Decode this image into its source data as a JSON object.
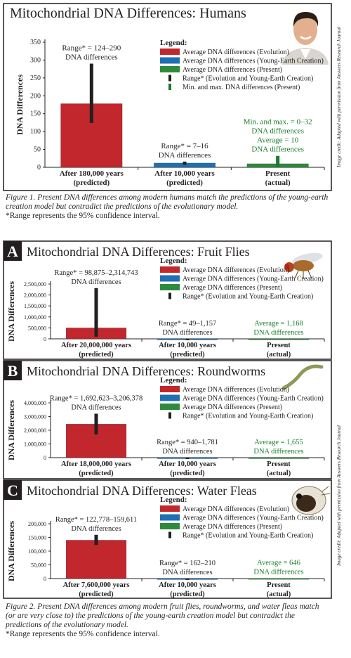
{
  "chart_data": [
    {
      "type": "bar",
      "title": "Mitochondrial DNA Differences: Humans",
      "ylabel": "DNA Differences",
      "categories": [
        "After 180,000 years\n(predicted)",
        "After 10,000 years\n(predicted)",
        "Present\n(actual)"
      ],
      "values": [
        178,
        12,
        10
      ],
      "colors": [
        "#c1272d",
        "#1f6fb5",
        "#2e8b3e"
      ],
      "err_low": [
        124,
        7,
        0
      ],
      "err_high": [
        290,
        16,
        32
      ],
      "err_colors": [
        "#231f20",
        "#231f20",
        "#1a7a2e"
      ],
      "annotations": [
        "Range* = 124–290\nDNA differences",
        "Range* = 7–16\nDNA differences",
        "Min. and max. = 0–32\nDNA differences\nAverage = 10\nDNA differences"
      ],
      "annotation_colors": [
        "#231f20",
        "#231f20",
        "#1a7a2e"
      ],
      "legend_title": "Legend:",
      "legend": [
        {
          "name": "Average DNA differences (Evolution)",
          "color": "#c1272d",
          "marker": "bar"
        },
        {
          "name": "Average DNA differences (Young-Earth Creation)",
          "color": "#1f6fb5",
          "marker": "bar"
        },
        {
          "name": "Average DNA differences (Present)",
          "color": "#2e8b3e",
          "marker": "bar"
        },
        {
          "name": "Range* (Evolution and Young-Earth Creation)",
          "color": "#231f20",
          "marker": "line"
        },
        {
          "name": "Min. and max. DNA differences (Present)",
          "color": "#1a7a2e",
          "marker": "line"
        }
      ],
      "ylim": [
        0,
        350
      ],
      "yticks": [
        0,
        50,
        100,
        150,
        200,
        250,
        300,
        350
      ]
    },
    {
      "type": "bar",
      "panel_label": "A",
      "title": "Mitochondrial DNA Differences: Fruit Flies",
      "ylabel": "DNA Differences",
      "categories": [
        "After 20,000,000 years\n(predicted)",
        "After 10,000 years\n(predicted)",
        "Present\n(actual)"
      ],
      "values": [
        500000,
        600,
        1168
      ],
      "colors": [
        "#c1272d",
        "#1f6fb5",
        "#2e8b3e"
      ],
      "err_low": [
        98875,
        49,
        null
      ],
      "err_high": [
        2314743,
        1157,
        null
      ],
      "err_colors": [
        "#231f20",
        "#231f20",
        "#231f20"
      ],
      "annotations": [
        "Range* = 98,875–2,314,743\nDNA differences",
        "Range* = 49–1,157\nDNA differences",
        "Average = 1,168\nDNA differences"
      ],
      "annotation_colors": [
        "#231f20",
        "#231f20",
        "#1a7a2e"
      ],
      "legend_title": "Legend:",
      "legend": [
        {
          "name": "Average DNA differences (Evolution)",
          "color": "#c1272d",
          "marker": "bar"
        },
        {
          "name": "Average DNA differences (Young-Earth Creation)",
          "color": "#1f6fb5",
          "marker": "bar"
        },
        {
          "name": "Average DNA differences (Present)",
          "color": "#2e8b3e",
          "marker": "bar"
        },
        {
          "name": "Range* (Evolution and Young-Earth Creation)",
          "color": "#231f20",
          "marker": "line"
        }
      ],
      "ylim": [
        0,
        2500000
      ],
      "yticks": [
        0,
        {
          "value": 500000,
          "label": "500,000"
        },
        {
          "value": 1000000,
          "label": "1,000,000"
        },
        {
          "value": 1500000,
          "label": "1,500,000"
        },
        {
          "value": 2000000,
          "label": "2,000,000"
        },
        {
          "value": 2500000,
          "label": "2,500,000"
        }
      ]
    },
    {
      "type": "bar",
      "panel_label": "B",
      "title": "Mitochondrial DNA Differences: Roundworms",
      "ylabel": "DNA Differences",
      "categories": [
        "After 18,000,000 years\n(predicted)",
        "After 10,000 years\n(predicted)",
        "Present\n(actual)"
      ],
      "values": [
        2450000,
        1300,
        1655
      ],
      "colors": [
        "#c1272d",
        "#1f6fb5",
        "#2e8b3e"
      ],
      "err_low": [
        1692623,
        940,
        null
      ],
      "err_high": [
        3206378,
        1781,
        null
      ],
      "err_colors": [
        "#231f20",
        "#231f20",
        "#231f20"
      ],
      "annotations": [
        "Range* = 1,692,623–3,206,378\nDNA differences",
        "Range* = 940–1,781\nDNA differences",
        "Average = 1,655\nDNA differences"
      ],
      "annotation_colors": [
        "#231f20",
        "#231f20",
        "#1a7a2e"
      ],
      "legend_title": "Legend:",
      "legend": [
        {
          "name": "Average DNA differences (Evolution)",
          "color": "#c1272d",
          "marker": "bar"
        },
        {
          "name": "Average DNA differences (Young-Earth Creation)",
          "color": "#1f6fb5",
          "marker": "bar"
        },
        {
          "name": "Average DNA differences (Present)",
          "color": "#2e8b3e",
          "marker": "bar"
        },
        {
          "name": "Range* (Evolution and Young-Earth Creation)",
          "color": "#231f20",
          "marker": "line"
        }
      ],
      "ylim": [
        0,
        4000000
      ],
      "yticks": [
        0,
        {
          "value": 1000000,
          "label": "1,000,000"
        },
        {
          "value": 2000000,
          "label": "2,000,000"
        },
        {
          "value": 3000000,
          "label": "3,000,000"
        },
        {
          "value": 4000000,
          "label": "4,000,000"
        }
      ]
    },
    {
      "type": "bar",
      "panel_label": "C",
      "title": "Mitochondrial DNA Differences: Water Fleas",
      "ylabel": "DNA Differences",
      "categories": [
        "After 7,600,000 years\n(predicted)",
        "After 10,000 years\n(predicted)",
        "Present\n(actual)"
      ],
      "values": [
        140000,
        186,
        646
      ],
      "colors": [
        "#c1272d",
        "#1f6fb5",
        "#2e8b3e"
      ],
      "err_low": [
        122778,
        162,
        null
      ],
      "err_high": [
        159611,
        210,
        null
      ],
      "err_colors": [
        "#231f20",
        "#231f20",
        "#231f20"
      ],
      "annotations": [
        "Range* = 122,778–159,611\nDNA differences",
        "Range* = 162–210\nDNA differences",
        "Average = 646\nDNA differences"
      ],
      "annotation_colors": [
        "#231f20",
        "#231f20",
        "#1a7a2e"
      ],
      "legend_title": "Legend:",
      "legend": [
        {
          "name": "Average DNA differences (Evolution)",
          "color": "#c1272d",
          "marker": "bar"
        },
        {
          "name": "Average DNA differences (Young-Earth Creation)",
          "color": "#1f6fb5",
          "marker": "bar"
        },
        {
          "name": "Average DNA differences (Present)",
          "color": "#2e8b3e",
          "marker": "bar"
        },
        {
          "name": "Range* (Evolution and Young-Earth Creation)",
          "color": "#231f20",
          "marker": "line"
        }
      ],
      "ylim": [
        0,
        200000
      ],
      "yticks": [
        0,
        {
          "value": 50000,
          "label": "50,000"
        },
        {
          "value": 100000,
          "label": "100,000"
        },
        {
          "value": 150000,
          "label": "150,000"
        },
        {
          "value": 200000,
          "label": "200,000"
        }
      ]
    }
  ],
  "captions": [
    {
      "text": "Figure 1. Present DNA differences among modern humans match the predictions of the young-earth creation model but contradict the predictions of the evolutionary model.",
      "note": "*Range represents the 95% confidence interval."
    },
    {
      "text": "Figure 2. Present DNA differences among modern fruit flies, roundworms, and water fleas match (or are very close to) the predictions of the young-earth creation model but contradict the predictions of the evolutionary model.",
      "note": "*Range represents the 95% confidence interval."
    }
  ],
  "credits": [
    "Image credit: Adapted with permission from Answers Research Journal",
    "Image credit: Adapted with permission from Answers Research Journal"
  ]
}
